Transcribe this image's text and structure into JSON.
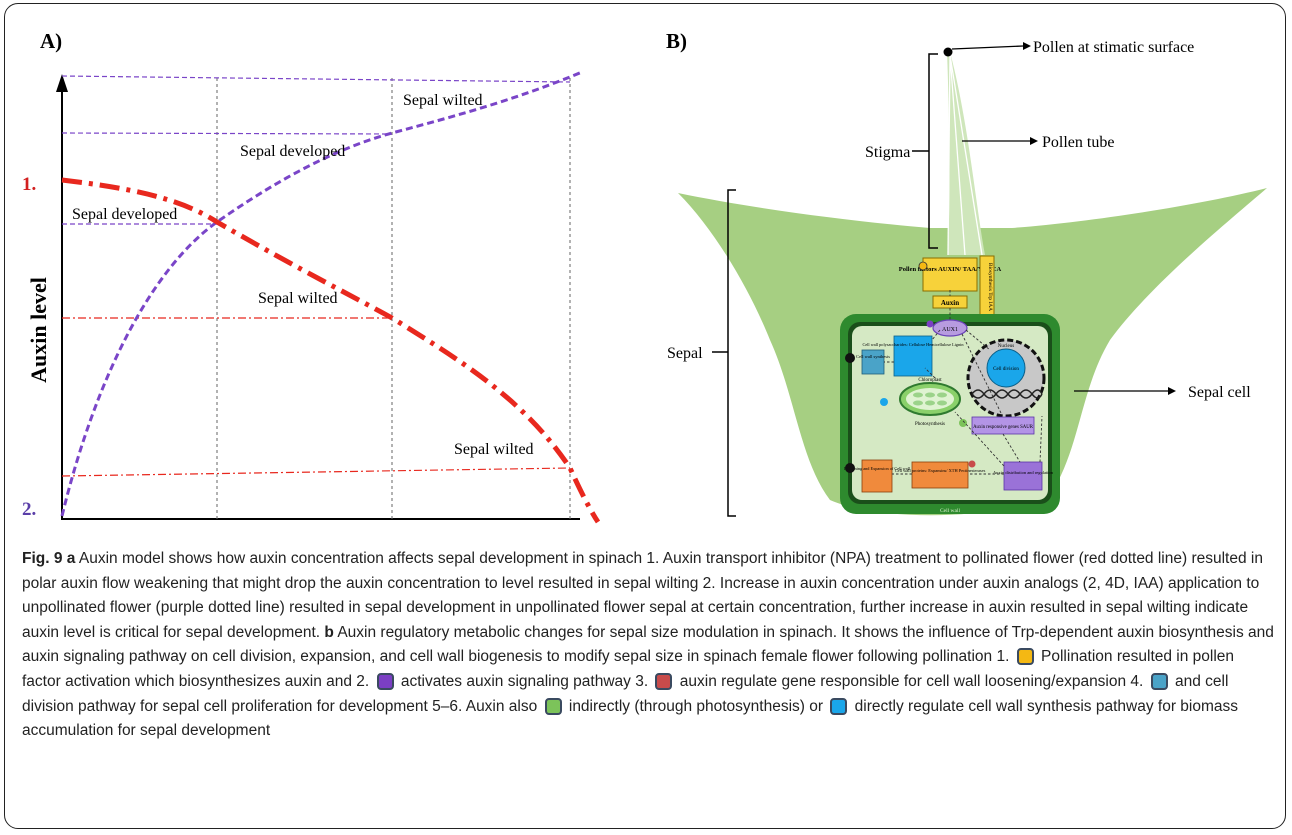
{
  "panel_a": {
    "panel_label": "A)",
    "ylabel": "Auxin level",
    "y_marks": [
      "1.",
      "2."
    ],
    "annotations": {
      "purple_top": "Sepal wilted",
      "purple_mid": "Sepal developed",
      "red_top": "Sepal developed",
      "red_mid": "Sepal wilted",
      "red_bottom": "Sepal wilted"
    },
    "colors": {
      "red_series": "#e8281e",
      "purple_series": "#7a45c8"
    }
  },
  "panel_b": {
    "panel_label": "B)",
    "labels": {
      "pollen": "Pollen at stimatic surface",
      "pollen_tube": "Pollen tube",
      "stigma": "Stigma",
      "sepal": "Sepal",
      "sepal_cell": "Sepal cell"
    },
    "cell_labels": {
      "pollen_factors": "Pollen factors AUXIN/ TAA/YUCCA",
      "auxin": "Auxin",
      "biosynthesis": "Biosynthesis Trp IAA",
      "aux1": "AUX1",
      "cell_wall_synthesis": "Cell wall synthesis",
      "polysaccharides": "Cell wall polysaccharides: Cellulose Hemicellulose Lignin",
      "nucleus": "Nucleus",
      "cell_division": "Cell division",
      "chloroplast": "Chloroplast",
      "photosynthesis": "Photosynthesis",
      "auxin_genes": "Auxin responsive genes SAUR",
      "auxin_distribution": "Auxin distribution and regulation",
      "cell_wall_proteins": "Cell wall proteins: Expansins/ XTH Pectinesterases",
      "loosening": "Loosening and Expansion of Cell wall",
      "cell_wall": "Cell wall"
    },
    "colors": {
      "sepal_green": "#a6cf82",
      "cell_wall": "#2e8a2e",
      "cytoplasm": "#d5e9c4"
    }
  },
  "caption": {
    "fig": "Fig. 9",
    "a_letter": "a",
    "a_text": " Auxin model shows how auxin concentration affects sepal development in spinach 1. Auxin transport inhibitor (NPA) treatment to pollinated flower (red dotted line) resulted in polar auxin flow weakening that might drop the auxin concentration to level resulted in sepal wilting 2. Increase in auxin concentration under auxin analogs (2, 4D, IAA) application to unpollinated flower (purple dotted line) resulted in sepal development in unpollinated flower sepal at certain concentration, further increase in auxin resulted in sepal wilting indicate auxin level is critical for sepal development. ",
    "b_letter": "b",
    "b_text": " Auxin regulatory metabolic changes for sepal size modulation in spinach. It shows the influence of Trp-dependent auxin biosynthesis and auxin signaling pathway on cell division, expansion, and cell wall biogenesis to modify sepal size in spinach female flower following pollination 1.",
    "seg1": " Pollination resulted in pollen factor activation which biosynthesizes auxin and 2.",
    "seg2": " activates auxin signaling pathway 3.",
    "seg3": " auxin regulate gene responsible for cell wall loosening/expansion 4.",
    "seg4": " and cell division pathway for sepal cell proliferation for development 5–6. Auxin also",
    "seg5": " indirectly (through photosynthesis) or",
    "seg6": " directly regulate cell wall synthesis pathway for biomass accumulation for sepal development",
    "swatches": [
      "#f4b813",
      "#7b3fc4",
      "#c84b4b",
      "#4aa3c8",
      "#7cc35a",
      "#1aa6ea"
    ]
  }
}
